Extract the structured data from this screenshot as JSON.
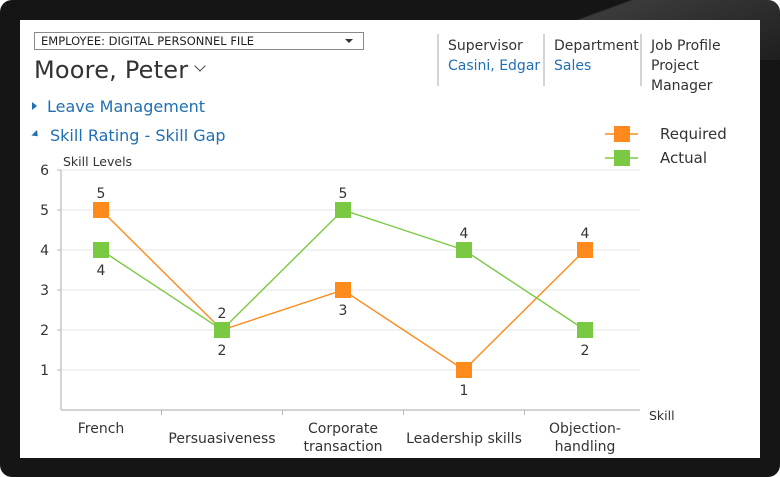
{
  "header": {
    "entity_selector": "EMPLOYEE: DIGITAL PERSONNEL FILE",
    "record_name": "Moore, Peter",
    "fields": [
      {
        "label": "Supervisor",
        "value": "Casini, Edgar",
        "is_link": true
      },
      {
        "label": "Department",
        "value": "Sales",
        "is_link": true
      },
      {
        "label": "Job Profile",
        "value": "Project Manager",
        "is_link": false
      }
    ]
  },
  "sections": {
    "leave": {
      "label": "Leave Management",
      "expanded": false
    },
    "skill": {
      "label": "Skill Rating - Skill Gap",
      "expanded": true
    }
  },
  "colors": {
    "required": "#ff8a1c",
    "actual": "#7ac943",
    "link": "#1f6fb3"
  },
  "chart_data": {
    "type": "line",
    "title": "",
    "ylabel": "Skill Levels",
    "xlabel": "Skill",
    "ylim": [
      0,
      6
    ],
    "yticks": [
      1,
      2,
      3,
      4,
      5,
      6
    ],
    "categories": [
      [
        "French"
      ],
      [
        "Persuasiveness"
      ],
      [
        "Corporate",
        "transaction"
      ],
      [
        "Leadership skills"
      ],
      [
        "Objection-",
        "handling"
      ]
    ],
    "series": [
      {
        "name": "Required",
        "values": [
          5,
          2,
          3,
          1,
          4
        ],
        "color": "#ff8a1c",
        "label_side": [
          "above",
          "below",
          "below",
          "below",
          "above"
        ]
      },
      {
        "name": "Actual",
        "values": [
          4,
          2,
          5,
          4,
          2
        ],
        "color": "#7ac943",
        "label_side": [
          "below",
          "above",
          "above",
          "above",
          "below"
        ]
      }
    ],
    "legend_position": "top-right",
    "grid": true
  }
}
